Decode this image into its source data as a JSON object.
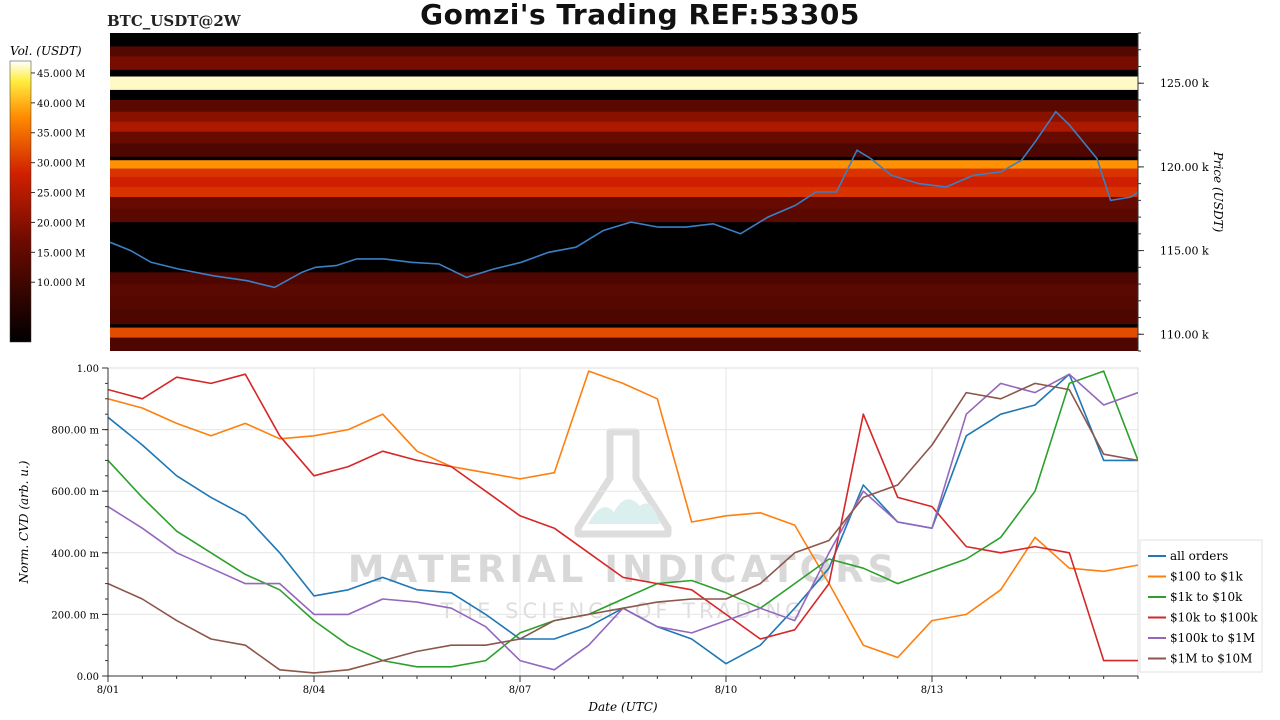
{
  "title": "Gomzi's Trading REF:53305",
  "ticker": "BTC_USDT@2W",
  "colors": {
    "price_line": "#3b7fc4",
    "background": "#ffffff",
    "grid": "#e6e6e6",
    "heatmap_low": "#000000",
    "heatmap_mid": "#c41e00",
    "heatmap_high": "#ffffff"
  },
  "watermark": {
    "name": "MATERIAL INDICATORS",
    "tagline": "THE SCIENCE OF TRADING",
    "icon": "flask-icon"
  },
  "chart_data": [
    {
      "type": "heatmap",
      "name": "order-book-heatmap",
      "ylabel": "Price (USDT)",
      "ylim": [
        109000,
        128000
      ],
      "yticks": [
        110000,
        115000,
        120000,
        125000
      ],
      "ytick_labels": [
        "110.00 k",
        "115.00 k",
        "120.00 k",
        "125.00 k"
      ],
      "colorbar": {
        "label": "Vol. (USDT)",
        "range": [
          0,
          47000000
        ],
        "ticks": [
          10000000,
          15000000,
          20000000,
          25000000,
          30000000,
          35000000,
          40000000,
          45000000
        ],
        "tick_labels": [
          "10.000 M",
          "15.000 M",
          "20.000 M",
          "25.000 M",
          "30.000 M",
          "35.000 M",
          "40.000 M",
          "45.000 M"
        ]
      },
      "price_series": {
        "x_days": [
          0,
          0.3,
          0.6,
          1.0,
          1.5,
          2.0,
          2.4,
          2.8,
          3.0,
          3.3,
          3.6,
          4.0,
          4.4,
          4.8,
          5.2,
          5.6,
          6.0,
          6.4,
          6.8,
          7.2,
          7.6,
          8.0,
          8.4,
          8.8,
          9.2,
          9.6,
          10.0,
          10.3,
          10.6,
          10.9,
          11.1,
          11.4,
          11.8,
          12.2,
          12.6,
          13.0,
          13.3,
          13.5,
          13.8,
          14.0,
          14.2,
          14.4,
          14.6,
          14.9,
          15.0
        ],
        "price": [
          115500,
          115000,
          114300,
          113900,
          113500,
          113200,
          112800,
          113700,
          114000,
          114100,
          114500,
          114500,
          114300,
          114200,
          113400,
          113900,
          114300,
          114900,
          115200,
          116200,
          116700,
          116400,
          116400,
          116600,
          116000,
          117000,
          117700,
          118500,
          118500,
          121000,
          120500,
          119500,
          119000,
          118800,
          119500,
          119700,
          120400,
          121500,
          123300,
          122500,
          121500,
          120500,
          118000,
          118200,
          118500
        ]
      },
      "bands": [
        {
          "price": 126800,
          "vol": 13000000
        },
        {
          "price": 126200,
          "vol": 18000000
        },
        {
          "price": 125000,
          "vol": 46000000
        },
        {
          "price": 123600,
          "vol": 14000000
        },
        {
          "price": 122900,
          "vol": 20000000
        },
        {
          "price": 122300,
          "vol": 24000000
        },
        {
          "price": 121700,
          "vol": 16000000
        },
        {
          "price": 121000,
          "vol": 12000000
        },
        {
          "price": 120000,
          "vol": 38000000
        },
        {
          "price": 119500,
          "vol": 30000000
        },
        {
          "price": 119000,
          "vol": 28000000
        },
        {
          "price": 118400,
          "vol": 30000000
        },
        {
          "price": 117800,
          "vol": 16000000
        },
        {
          "price": 117100,
          "vol": 14000000
        },
        {
          "price": 113300,
          "vol": 12000000
        },
        {
          "price": 112600,
          "vol": 14000000
        },
        {
          "price": 111800,
          "vol": 13000000
        },
        {
          "price": 111000,
          "vol": 12000000
        },
        {
          "price": 110000,
          "vol": 32000000
        },
        {
          "price": 109400,
          "vol": 12000000
        }
      ]
    },
    {
      "type": "line",
      "name": "normalized-cvd",
      "xlabel": "Date (UTC)",
      "ylabel": "Norm. CVD (arb. u.)",
      "ylim": [
        0,
        1
      ],
      "yticks": [
        0,
        0.2,
        0.4,
        0.6,
        0.8,
        1.0
      ],
      "ytick_labels": [
        "0.00",
        "200.00 m",
        "400.00 m",
        "600.00 m",
        "800.00 m",
        "1.00"
      ],
      "xlim_days": [
        0,
        15
      ],
      "xticks_days": [
        0,
        3,
        6,
        9,
        12
      ],
      "xtick_labels": [
        "8/01",
        "8/04",
        "8/07",
        "8/10",
        "8/13"
      ],
      "legend_position": "bottom-right",
      "x_days": [
        0,
        0.5,
        1,
        1.5,
        2,
        2.5,
        3,
        3.5,
        4,
        4.5,
        5,
        5.5,
        6,
        6.5,
        7,
        7.5,
        8,
        8.5,
        9,
        9.5,
        10,
        10.5,
        11,
        11.5,
        12,
        12.5,
        13,
        13.5,
        14,
        14.5,
        15
      ],
      "series": [
        {
          "name": "all orders",
          "color": "#1f77b4",
          "values": [
            0.84,
            0.75,
            0.65,
            0.58,
            0.52,
            0.4,
            0.26,
            0.28,
            0.32,
            0.28,
            0.27,
            0.2,
            0.12,
            0.12,
            0.16,
            0.22,
            0.16,
            0.12,
            0.04,
            0.1,
            0.22,
            0.35,
            0.62,
            0.5,
            0.48,
            0.78,
            0.85,
            0.88,
            0.98,
            0.7,
            0.7
          ]
        },
        {
          "name": "$100 to $1k",
          "color": "#ff7f0e",
          "values": [
            0.9,
            0.87,
            0.82,
            0.78,
            0.82,
            0.77,
            0.78,
            0.8,
            0.85,
            0.73,
            0.68,
            0.66,
            0.64,
            0.66,
            0.99,
            0.95,
            0.9,
            0.5,
            0.52,
            0.53,
            0.49,
            0.3,
            0.1,
            0.06,
            0.18,
            0.2,
            0.28,
            0.45,
            0.35,
            0.34,
            0.36
          ]
        },
        {
          "name": "$1k to $10k",
          "color": "#2ca02c",
          "values": [
            0.7,
            0.58,
            0.47,
            0.4,
            0.33,
            0.28,
            0.18,
            0.1,
            0.05,
            0.03,
            0.03,
            0.05,
            0.14,
            0.18,
            0.2,
            0.25,
            0.3,
            0.31,
            0.27,
            0.22,
            0.3,
            0.38,
            0.35,
            0.3,
            0.34,
            0.38,
            0.45,
            0.6,
            0.95,
            0.99,
            0.7
          ]
        },
        {
          "name": "$10k to $100k",
          "color": "#d62728",
          "values": [
            0.93,
            0.9,
            0.97,
            0.95,
            0.98,
            0.78,
            0.65,
            0.68,
            0.73,
            0.7,
            0.68,
            0.6,
            0.52,
            0.48,
            0.4,
            0.32,
            0.3,
            0.28,
            0.2,
            0.12,
            0.15,
            0.3,
            0.85,
            0.58,
            0.55,
            0.42,
            0.4,
            0.42,
            0.4,
            0.05,
            0.05
          ]
        },
        {
          "name": "$100k to $1M",
          "color": "#9467bd",
          "values": [
            0.55,
            0.48,
            0.4,
            0.35,
            0.3,
            0.3,
            0.2,
            0.2,
            0.25,
            0.24,
            0.22,
            0.16,
            0.05,
            0.02,
            0.1,
            0.22,
            0.16,
            0.14,
            0.18,
            0.22,
            0.18,
            0.4,
            0.6,
            0.5,
            0.48,
            0.85,
            0.95,
            0.92,
            0.98,
            0.88,
            0.92
          ]
        },
        {
          "name": "$1M to $10M",
          "color": "#8c564b",
          "values": [
            0.3,
            0.25,
            0.18,
            0.12,
            0.1,
            0.02,
            0.01,
            0.02,
            0.05,
            0.08,
            0.1,
            0.1,
            0.12,
            0.18,
            0.2,
            0.22,
            0.24,
            0.25,
            0.25,
            0.3,
            0.4,
            0.44,
            0.58,
            0.62,
            0.75,
            0.92,
            0.9,
            0.95,
            0.93,
            0.72,
            0.7
          ]
        }
      ]
    }
  ]
}
